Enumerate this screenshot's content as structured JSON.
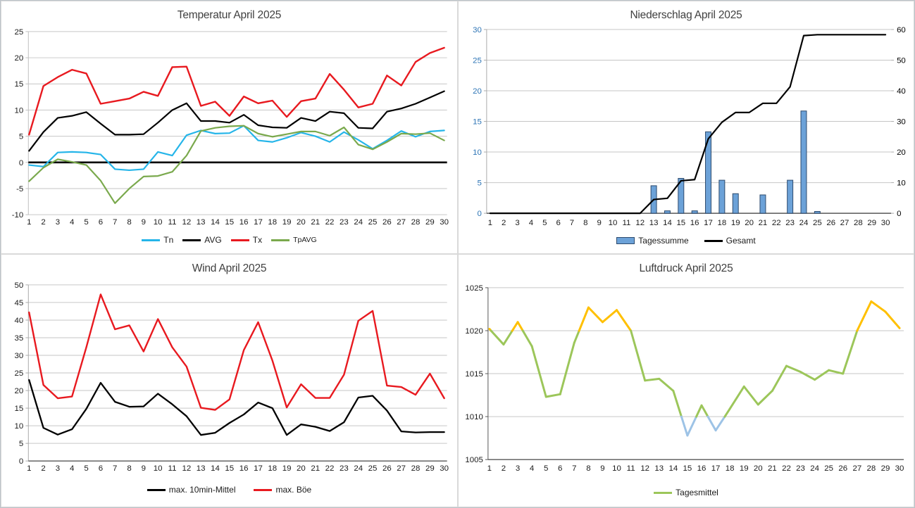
{
  "page": {
    "background": "#FFFFFF",
    "outer_border_color": "#BCC3C9",
    "panel_border_color": "#D9D9D9",
    "gridline_color": "#C6C6C6",
    "title_color": "#404040"
  },
  "chart_data": [
    {
      "type": "line",
      "title": "Temperatur April 2025",
      "x": [
        1,
        2,
        3,
        4,
        5,
        6,
        7,
        8,
        9,
        10,
        11,
        12,
        13,
        14,
        15,
        16,
        17,
        18,
        19,
        20,
        21,
        22,
        23,
        24,
        25,
        26,
        27,
        28,
        29,
        30
      ],
      "ylim": [
        -10,
        25
      ],
      "yticks": [
        -10,
        -5,
        0,
        5,
        10,
        15,
        20,
        25
      ],
      "grid": true,
      "zero_line": true,
      "legend_position": "bottom",
      "series": [
        {
          "name": "Tn",
          "color": "#25B5E9",
          "width": 2.2,
          "values": [
            -0.5,
            -0.8,
            1.9,
            2.0,
            1.9,
            1.5,
            -1.3,
            -1.5,
            -1.3,
            2.0,
            1.3,
            5.2,
            6.1,
            5.5,
            5.6,
            7.0,
            4.2,
            3.9,
            4.7,
            5.7,
            5.0,
            3.9,
            5.8,
            4.3,
            2.6,
            4.2,
            6.0,
            4.9,
            5.9,
            6.1
          ]
        },
        {
          "name": "AVG",
          "color": "#000000",
          "width": 2.2,
          "values": [
            2.2,
            5.8,
            8.5,
            8.9,
            9.6,
            7.4,
            5.3,
            5.3,
            5.4,
            7.6,
            10.0,
            11.3,
            7.9,
            7.9,
            7.6,
            9.1,
            7.1,
            6.7,
            6.6,
            8.5,
            7.9,
            9.7,
            9.4,
            6.6,
            6.5,
            9.7,
            10.3,
            11.2,
            12.4,
            13.6
          ]
        },
        {
          "name": "Tx",
          "color": "#E8191F",
          "width": 2.4,
          "values": [
            5.3,
            14.6,
            16.3,
            17.7,
            17.0,
            11.2,
            11.7,
            12.2,
            13.5,
            12.7,
            18.2,
            18.3,
            10.8,
            11.6,
            8.9,
            12.6,
            11.3,
            11.8,
            8.7,
            11.7,
            12.2,
            16.9,
            13.9,
            10.5,
            11.2,
            16.6,
            14.7,
            19.2,
            20.9,
            21.9
          ]
        },
        {
          "name": "TpAVG",
          "color": "#7AA94D",
          "width": 2.2,
          "values": [
            -3.6,
            -1.0,
            0.6,
            0.1,
            -0.5,
            -3.5,
            -7.8,
            -5.0,
            -2.7,
            -2.6,
            -1.8,
            1.3,
            6.0,
            6.6,
            6.9,
            7.0,
            5.5,
            4.9,
            5.4,
            5.9,
            5.9,
            5.1,
            6.7,
            3.4,
            2.5,
            3.9,
            5.5,
            5.4,
            5.6,
            4.2
          ]
        }
      ],
      "legend": [
        {
          "label": "Tn",
          "swatch": "line",
          "color": "#25B5E9"
        },
        {
          "label": "AVG",
          "swatch": "line",
          "color": "#000000"
        },
        {
          "label": "Tx",
          "swatch": "line",
          "color": "#E8191F"
        },
        {
          "label": "TpAVG",
          "swatch": "line",
          "color": "#7AA94D",
          "small": true
        }
      ]
    },
    {
      "type": "bar+line",
      "title": "Niederschlag April 2025",
      "x": [
        1,
        2,
        3,
        4,
        5,
        6,
        7,
        8,
        9,
        10,
        11,
        12,
        13,
        14,
        15,
        16,
        17,
        18,
        19,
        20,
        21,
        22,
        23,
        24,
        25,
        26,
        27,
        28,
        29,
        30
      ],
      "left_axis": {
        "ylim": [
          0,
          30
        ],
        "ticks": [
          0,
          5,
          10,
          15,
          20,
          25,
          30
        ],
        "label_color": "#2E75B6"
      },
      "right_axis": {
        "ylim": [
          0,
          60
        ],
        "ticks": [
          0,
          10,
          20,
          30,
          40,
          50,
          60
        ],
        "label_color": "#000000"
      },
      "grid": true,
      "legend_position": "bottom",
      "bar_series": {
        "name": "Tagessumme",
        "axis": "left",
        "fill": "#6CA2D8",
        "stroke": "#2E4B6E",
        "values": [
          0,
          0,
          0,
          0,
          0,
          0,
          0,
          0,
          0,
          0,
          0,
          0,
          4.5,
          0.4,
          5.7,
          0.4,
          13.3,
          5.4,
          3.2,
          0,
          3.0,
          0,
          5.4,
          16.7,
          0.3,
          0,
          0,
          0,
          0,
          0
        ]
      },
      "line_series": {
        "name": "Gesamt",
        "axis": "right",
        "color": "#000000",
        "width": 2.2,
        "values": [
          0,
          0,
          0,
          0,
          0,
          0,
          0,
          0,
          0,
          0,
          0,
          0,
          4.5,
          4.9,
          10.6,
          11.0,
          24.3,
          29.7,
          32.9,
          32.9,
          35.9,
          35.9,
          41.3,
          58.0,
          58.3,
          58.3,
          58.3,
          58.3,
          58.3,
          58.3
        ]
      },
      "legend": [
        {
          "label": "Tagessumme",
          "swatch": "bar",
          "fill": "#6CA2D8",
          "stroke": "#2E4B6E"
        },
        {
          "label": "Gesamt",
          "swatch": "line",
          "color": "#000000"
        }
      ]
    },
    {
      "type": "line",
      "title": "Wind April 2025",
      "x": [
        1,
        2,
        3,
        4,
        5,
        6,
        7,
        8,
        9,
        10,
        11,
        12,
        13,
        14,
        15,
        16,
        17,
        18,
        19,
        20,
        21,
        22,
        23,
        24,
        25,
        26,
        27,
        28,
        29,
        30
      ],
      "ylim": [
        0,
        50
      ],
      "yticks": [
        0,
        5,
        10,
        15,
        20,
        25,
        30,
        35,
        40,
        45,
        50
      ],
      "grid": true,
      "legend_position": "bottom",
      "series": [
        {
          "name": "max. 10min-Mittel",
          "color": "#000000",
          "width": 2.3,
          "values": [
            23.0,
            9.4,
            7.5,
            9.0,
            14.8,
            22.2,
            16.8,
            15.4,
            15.5,
            19.1,
            16.1,
            12.7,
            7.4,
            8.0,
            10.8,
            13.2,
            16.6,
            15.0,
            7.4,
            10.4,
            9.7,
            8.5,
            11.0,
            18.0,
            18.5,
            14.3,
            8.4,
            8.1,
            8.2,
            8.2
          ]
        },
        {
          "name": "max. Böe",
          "color": "#E8191F",
          "width": 2.4,
          "values": [
            42.2,
            21.6,
            17.8,
            18.3,
            32.3,
            47.3,
            37.4,
            38.5,
            31.1,
            40.3,
            32.3,
            26.8,
            15.1,
            14.5,
            17.5,
            31.5,
            39.4,
            28.5,
            15.2,
            21.8,
            17.9,
            17.9,
            24.5,
            39.8,
            42.6,
            21.4,
            21.0,
            18.8,
            24.8,
            17.8
          ]
        }
      ],
      "legend": [
        {
          "label": "max. 10min-Mittel",
          "swatch": "line",
          "color": "#000000"
        },
        {
          "label": "max. Böe",
          "swatch": "line",
          "color": "#E8191F"
        }
      ]
    },
    {
      "type": "line-multicolor",
      "title": "Luftdruck April 2025",
      "x": [
        1,
        2,
        3,
        4,
        5,
        6,
        7,
        8,
        9,
        10,
        11,
        12,
        13,
        14,
        15,
        16,
        17,
        18,
        19,
        20,
        21,
        22,
        23,
        24,
        25,
        26,
        27,
        28,
        29,
        30
      ],
      "ylim": [
        1005,
        1025
      ],
      "yticks": [
        1005,
        1010,
        1015,
        1020,
        1025
      ],
      "grid": true,
      "legend_position": "bottom",
      "series": [
        {
          "name": "Tagesmittel",
          "width": 3,
          "color_rules": {
            "above": 1020,
            "above_color": "#FFC000",
            "below": 1010,
            "below_color": "#9DC3E6",
            "mid_color": "#9CC65A"
          },
          "values": [
            1020.2,
            1018.4,
            1021.0,
            1018.2,
            1012.3,
            1012.6,
            1018.6,
            1022.7,
            1021.0,
            1022.4,
            1020.0,
            1014.2,
            1014.4,
            1013.0,
            1007.8,
            1011.3,
            1008.4,
            1010.9,
            1013.5,
            1011.4,
            1013.0,
            1015.9,
            1015.2,
            1014.3,
            1015.4,
            1015.0,
            1020.0,
            1023.4,
            1022.2,
            1020.3
          ]
        }
      ],
      "legend": [
        {
          "label": "Tagesmittel",
          "swatch": "line",
          "color": "#9CC65A"
        }
      ]
    }
  ]
}
